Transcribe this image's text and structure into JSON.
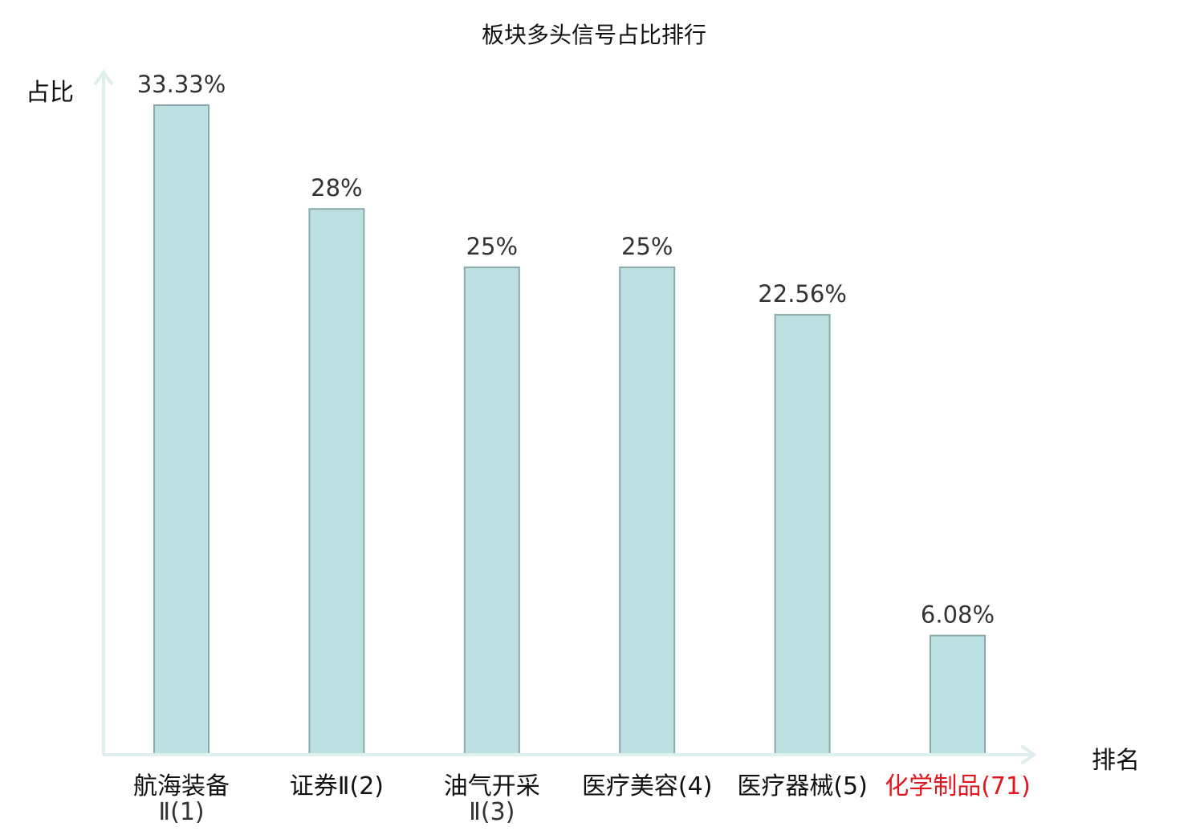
{
  "chart_data": {
    "type": "bar",
    "title": "板块多头信号占比排行",
    "ylabel": "占比",
    "xlabel": "排名",
    "categories": [
      {
        "line1": "航海装备",
        "line2": "Ⅱ(1)",
        "highlight": false
      },
      {
        "line1": "证券Ⅱ(2)",
        "line2": "",
        "highlight": false
      },
      {
        "line1": "油气开采",
        "line2": "Ⅱ(3)",
        "highlight": false
      },
      {
        "line1": "医疗美容(4)",
        "line2": "",
        "highlight": false
      },
      {
        "line1": "医疗器械(5)",
        "line2": "",
        "highlight": false
      },
      {
        "line1": "化学制品(71)",
        "line2": "",
        "highlight": true
      }
    ],
    "values": [
      33.33,
      28,
      25,
      25,
      22.56,
      6.08
    ],
    "labels": [
      "33.33%",
      "28%",
      "25%",
      "25%",
      "22.56%",
      "6.08%"
    ],
    "ylim": [
      0,
      34.5
    ],
    "grid": false,
    "colors": {
      "bar_fill": "#bde0e2",
      "bar_stroke": "#8aa9aa",
      "axis": "#ddf0ed",
      "highlight_text": "#e0171f"
    }
  }
}
